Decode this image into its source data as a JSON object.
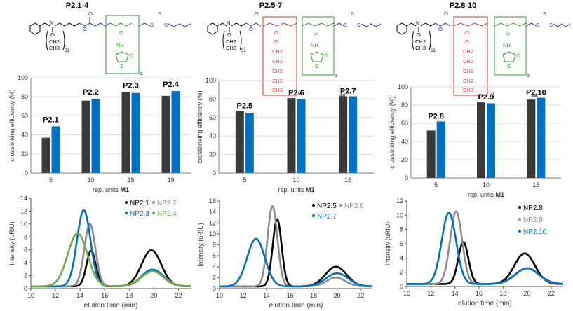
{
  "colors": {
    "dark": "#3a3a3a",
    "blue": "#0070c0",
    "gray": "#8c8c8c",
    "green": "#70ad47",
    "black": "#000000",
    "red": "#e03030",
    "chemBlue": "#2233bb",
    "chemGreen": "#2ea02e"
  },
  "structures": [
    {
      "title": "P2.1-4",
      "backbone_label": "N",
      "repeat_51": "51",
      "pendant_atoms": [
        "O",
        "CH2",
        "CH3"
      ],
      "ester_atoms": [
        "O",
        "O"
      ],
      "amide_label": "NH",
      "lactone_atoms": [
        "O",
        "S"
      ],
      "raft_atoms": [
        "S",
        "S",
        "S"
      ],
      "subscript": "z"
    },
    {
      "title": "P2.5-7",
      "backbone_label": "N",
      "repeat_51": "51",
      "pendant_atoms": [
        "O",
        "CH2",
        "CH3"
      ],
      "ester_atoms": [
        "O",
        "O"
      ],
      "red_chain": [
        "O",
        "O",
        "CH2",
        "CH2",
        "CH2",
        "CH2",
        "CH3"
      ],
      "red_subscript": "5",
      "amide_label": "NH",
      "lactone_atoms": [
        "O",
        "S"
      ],
      "raft_atoms": [
        "S",
        "S",
        "S"
      ],
      "subscript": "z",
      "stat": "stat"
    },
    {
      "title": "P2.8-10",
      "backbone_label": "N",
      "repeat_51": "51",
      "pendant_atoms": [
        "O",
        "CH2",
        "CH3"
      ],
      "ester_atoms": [
        "O",
        "O"
      ],
      "red_chain": [
        "O",
        "O",
        "CH2",
        "CH2",
        "CH2",
        "CH2",
        "CH3"
      ],
      "red_subscript": "10",
      "amide_label": "NH",
      "lactone_atoms": [
        "O",
        "S"
      ],
      "raft_atoms": [
        "S",
        "S",
        "S"
      ],
      "subscript": "z",
      "stat": "stat"
    }
  ],
  "chart_data": [
    {
      "type": "bar",
      "title": "",
      "ylabel": "crosslinking efficiency (%)",
      "xlabel": "rep. units",
      "xlabel_bold": "M1",
      "ylim": [
        0,
        100
      ],
      "yticks": [
        0,
        20,
        40,
        60,
        80,
        100
      ],
      "categories": [
        "5",
        "10",
        "15",
        "19"
      ],
      "series": [
        {
          "name": "dark",
          "values": [
            37,
            76,
            85,
            81
          ]
        },
        {
          "name": "blue",
          "values": [
            49,
            78,
            84,
            86
          ]
        }
      ],
      "group_labels": [
        "P2.1",
        "P2.2",
        "P2.3",
        "P2.4"
      ],
      "grid": true
    },
    {
      "type": "bar",
      "title": "",
      "ylabel": "crosslinking efficiency (%)",
      "xlabel": "rep. units",
      "xlabel_bold": "M1",
      "ylim": [
        0,
        100
      ],
      "yticks": [
        0,
        20,
        40,
        60,
        80,
        100
      ],
      "categories": [
        "5",
        "10",
        "15"
      ],
      "series": [
        {
          "name": "dark",
          "values": [
            67,
            81,
            83
          ]
        },
        {
          "name": "blue",
          "values": [
            65,
            80,
            83
          ]
        }
      ],
      "group_labels": [
        "P2.5",
        "P2.6",
        "P2.7"
      ],
      "grid": true
    },
    {
      "type": "bar",
      "title": "",
      "ylabel": "crosslinking efficiency (%)",
      "xlabel": "rep. units",
      "xlabel_bold": "M1",
      "ylim": [
        0,
        100
      ],
      "yticks": [
        0,
        20,
        40,
        60,
        80,
        100
      ],
      "categories": [
        "5",
        "10",
        "15"
      ],
      "series": [
        {
          "name": "dark",
          "values": [
            52,
            83,
            86
          ]
        },
        {
          "name": "blue",
          "values": [
            62,
            82,
            88
          ]
        }
      ],
      "group_labels": [
        "P2.8",
        "P2.9",
        "P2.10"
      ],
      "grid": true
    },
    {
      "type": "line",
      "xlabel": "elution time (min)",
      "ylabel": "Intensity (uRIU)",
      "xlim": [
        10,
        23
      ],
      "ylim": [
        0,
        14
      ],
      "xticks": [
        10,
        12,
        14,
        16,
        18,
        20,
        22
      ],
      "yticks": [
        0,
        2,
        4,
        6,
        8,
        10,
        12,
        14
      ],
      "series": [
        {
          "name": "NP2.1",
          "color": "black",
          "baseline": 0.35,
          "peaks": [
            {
              "mu": 14.9,
              "sigma": 0.38,
              "amp": 5.5
            },
            {
              "mu": 19.8,
              "sigma": 0.8,
              "amp": 5.6
            }
          ]
        },
        {
          "name": "NP2.2",
          "color": "gray",
          "baseline": 0.35,
          "peaks": [
            {
              "mu": 14.8,
              "sigma": 0.45,
              "amp": 9.7
            },
            {
              "mu": 19.9,
              "sigma": 0.85,
              "amp": 2.4
            }
          ]
        },
        {
          "name": "NP2.3",
          "color": "blue",
          "baseline": 0.35,
          "peaks": [
            {
              "mu": 14.3,
              "sigma": 0.55,
              "amp": 11.8
            },
            {
              "mu": 19.9,
              "sigma": 0.9,
              "amp": 2.6
            }
          ]
        },
        {
          "name": "NP2.4",
          "color": "green",
          "baseline": 0.35,
          "peaks": [
            {
              "mu": 13.8,
              "sigma": 0.8,
              "amp": 8.2
            },
            {
              "mu": 19.9,
              "sigma": 0.95,
              "amp": 2.3
            }
          ]
        }
      ],
      "legend_position": "top-right"
    },
    {
      "type": "line",
      "xlabel": "elution time (min)",
      "ylabel": "Intensity (uRIU)",
      "xlim": [
        10,
        23
      ],
      "ylim": [
        0,
        16
      ],
      "xticks": [
        10,
        12,
        14,
        16,
        18,
        20,
        22
      ],
      "yticks": [
        0,
        2,
        4,
        6,
        8,
        10,
        12,
        14,
        16
      ],
      "series": [
        {
          "name": "NP2.5",
          "color": "black",
          "baseline": 0.4,
          "peaks": [
            {
              "mu": 14.9,
              "sigma": 0.38,
              "amp": 12.3
            },
            {
              "mu": 19.9,
              "sigma": 0.9,
              "amp": 3.6
            }
          ]
        },
        {
          "name": "NP2.6",
          "color": "gray",
          "baseline": 0.4,
          "peaks": [
            {
              "mu": 14.5,
              "sigma": 0.42,
              "amp": 14.7
            },
            {
              "mu": 19.9,
              "sigma": 0.8,
              "amp": 1.6
            }
          ]
        },
        {
          "name": "NP2.7",
          "color": "blue",
          "baseline": 0.4,
          "peaks": [
            {
              "mu": 13.1,
              "sigma": 0.75,
              "amp": 8.7
            },
            {
              "mu": 20.0,
              "sigma": 0.95,
              "amp": 2.4
            }
          ]
        }
      ],
      "legend_position": "top-right"
    },
    {
      "type": "line",
      "xlabel": "elution time (min)",
      "ylabel": "Intensity (uRIU)",
      "xlim": [
        10,
        23
      ],
      "ylim": [
        0,
        12
      ],
      "xticks": [
        10,
        12,
        14,
        16,
        18,
        20,
        22
      ],
      "yticks": [
        0,
        2,
        4,
        6,
        8,
        10,
        12
      ],
      "series": [
        {
          "name": "NP2.8",
          "color": "black",
          "baseline": 0.35,
          "peaks": [
            {
              "mu": 14.7,
              "sigma": 0.42,
              "amp": 5.9
            },
            {
              "mu": 19.8,
              "sigma": 0.85,
              "amp": 4.3
            }
          ]
        },
        {
          "name": "NP2.9",
          "color": "gray",
          "baseline": 0.35,
          "peaks": [
            {
              "mu": 14.1,
              "sigma": 0.5,
              "amp": 10.2
            },
            {
              "mu": 20.0,
              "sigma": 0.95,
              "amp": 2.2
            }
          ]
        },
        {
          "name": "NP2.10",
          "color": "blue",
          "baseline": 0.35,
          "peaks": [
            {
              "mu": 13.5,
              "sigma": 0.6,
              "amp": 10.0
            },
            {
              "mu": 20.0,
              "sigma": 1.0,
              "amp": 2.2
            }
          ]
        }
      ],
      "legend_position": "top-right"
    }
  ]
}
